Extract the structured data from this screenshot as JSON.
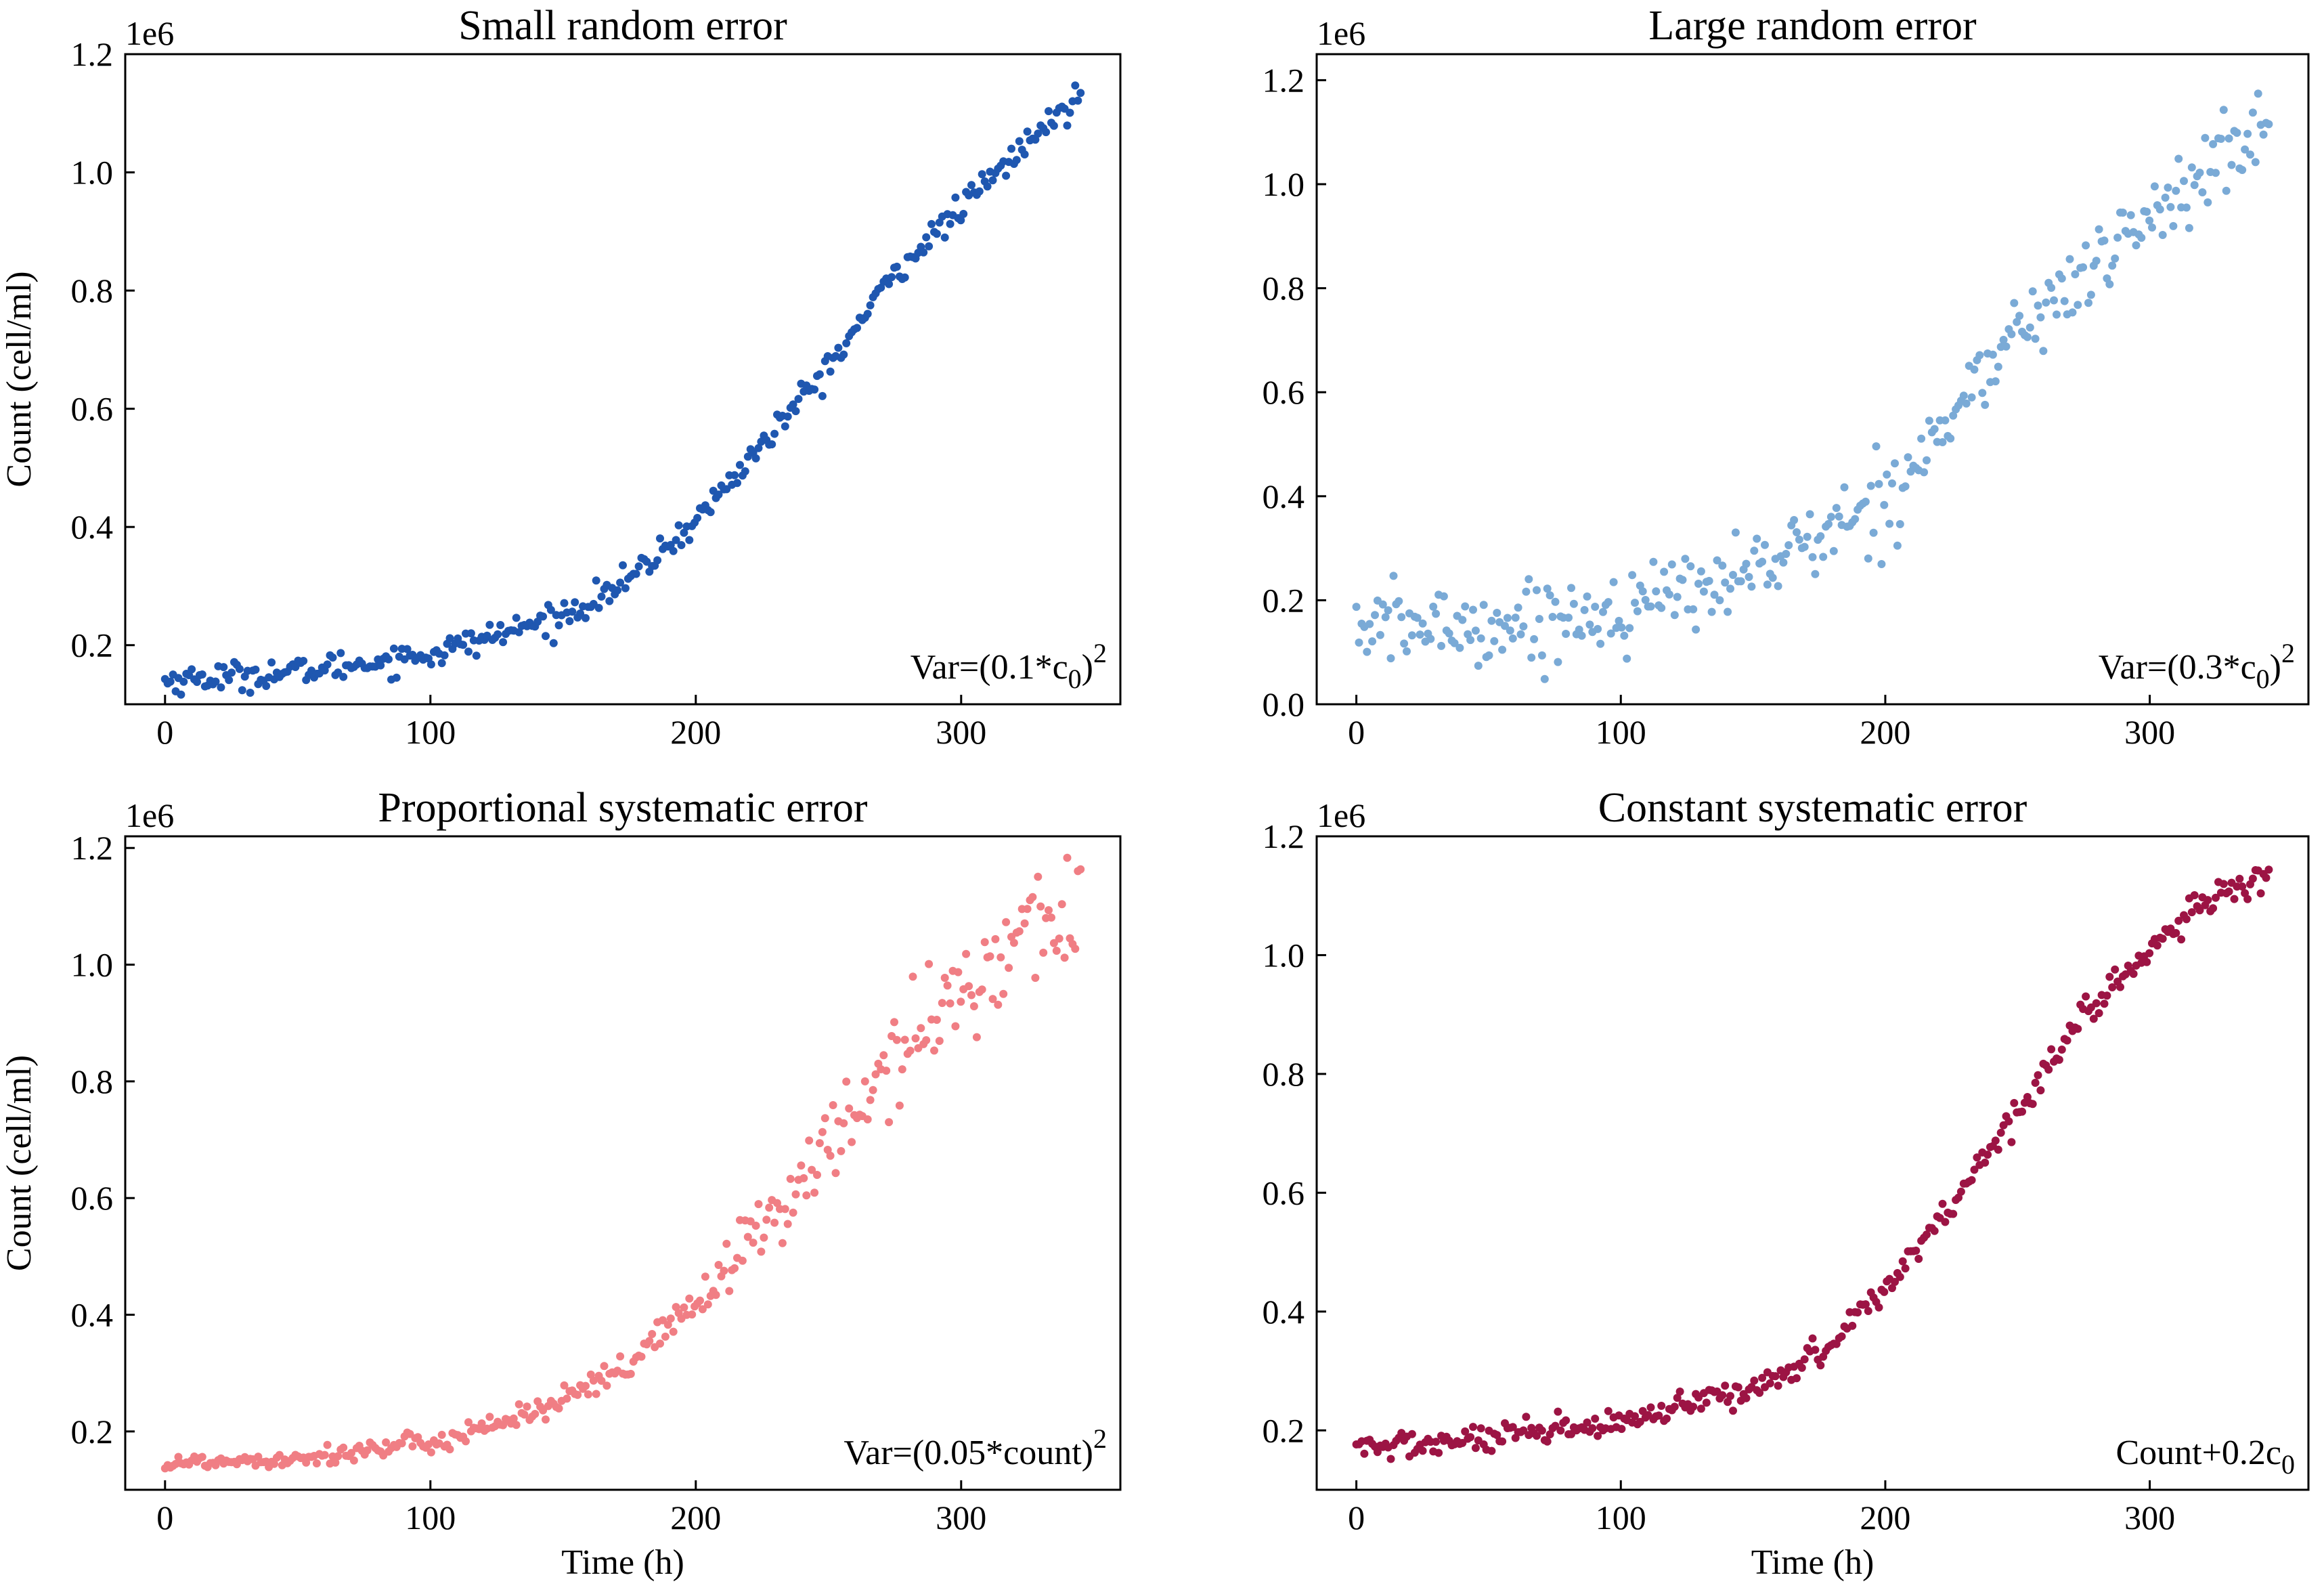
{
  "figure": {
    "y_label": "Count (cell/ml)",
    "x_label": "Time (h)"
  },
  "chart_data": [
    {
      "type": "scatter",
      "title": "Small random error",
      "xlabel": "",
      "ylabel": "Count (cell/ml)",
      "offset_label": "1e6",
      "annotation": {
        "text": "Var=(0.1*c",
        "subscript": "0",
        "tail": ")",
        "superscript": "2"
      },
      "color": "#1f57b0",
      "noise_sd": 0.012,
      "xlim": [
        -15,
        360
      ],
      "ylim": [
        0.1,
        1.2
      ],
      "xticks": [
        0,
        100,
        200,
        300
      ],
      "yticks": [
        0.2,
        0.4,
        0.6,
        0.8,
        1.0,
        1.2
      ],
      "x_range": [
        0,
        345
      ],
      "n_points": 345,
      "curve": {
        "x": [
          0,
          50,
          100,
          150,
          175,
          200,
          225,
          250,
          275,
          300,
          325,
          345
        ],
        "y": [
          0.14,
          0.155,
          0.185,
          0.25,
          0.31,
          0.41,
          0.54,
          0.67,
          0.83,
          0.94,
          1.05,
          1.13
        ]
      }
    },
    {
      "type": "scatter",
      "title": "Large random error",
      "xlabel": "",
      "ylabel": "",
      "offset_label": "1e6",
      "annotation": {
        "text": "Var=(0.3*c",
        "subscript": "0",
        "tail": ")",
        "superscript": "2"
      },
      "color": "#7aaad6",
      "noise_sd": 0.038,
      "xlim": [
        -15,
        360
      ],
      "ylim": [
        0.0,
        1.25
      ],
      "xticks": [
        0,
        100,
        200,
        300
      ],
      "yticks": [
        0.0,
        0.2,
        0.4,
        0.6,
        0.8,
        1.0,
        1.2
      ],
      "x_range": [
        0,
        345
      ],
      "n_points": 345,
      "curve": {
        "x": [
          0,
          50,
          100,
          150,
          175,
          200,
          225,
          250,
          275,
          300,
          325,
          345
        ],
        "y": [
          0.15,
          0.15,
          0.18,
          0.26,
          0.32,
          0.4,
          0.55,
          0.72,
          0.82,
          0.94,
          1.04,
          1.1
        ]
      }
    },
    {
      "type": "scatter",
      "title": "Proportional systematic error",
      "xlabel": "Time (h)",
      "ylabel": "Count (cell/ml)",
      "offset_label": "1e6",
      "annotation": {
        "text": "Var=(0.05*count)",
        "subscript": "",
        "tail": "",
        "superscript": "2"
      },
      "color": "#f07e84",
      "noise_sd": 0.0,
      "proportional_sd": 0.05,
      "xlim": [
        -15,
        360
      ],
      "ylim": [
        0.1,
        1.22
      ],
      "xticks": [
        0,
        100,
        200,
        300
      ],
      "yticks": [
        0.2,
        0.4,
        0.6,
        0.8,
        1.0,
        1.2
      ],
      "x_range": [
        0,
        345
      ],
      "n_points": 345,
      "curve": {
        "x": [
          0,
          50,
          100,
          150,
          175,
          200,
          225,
          250,
          275,
          300,
          325,
          345
        ],
        "y": [
          0.145,
          0.155,
          0.18,
          0.25,
          0.31,
          0.42,
          0.55,
          0.69,
          0.83,
          0.96,
          1.06,
          1.1
        ]
      }
    },
    {
      "type": "scatter",
      "title": "Constant systematic error",
      "xlabel": "Time (h)",
      "ylabel": "",
      "offset_label": "1e6",
      "annotation": {
        "text": "Count+0.2c",
        "subscript": "0",
        "tail": "",
        "superscript": ""
      },
      "color": "#9c1444",
      "noise_sd": 0.012,
      "xlim": [
        -15,
        360
      ],
      "ylim": [
        0.1,
        1.2
      ],
      "xticks": [
        0,
        100,
        200,
        300
      ],
      "yticks": [
        0.2,
        0.4,
        0.6,
        0.8,
        1.0,
        1.2
      ],
      "x_range": [
        0,
        345
      ],
      "n_points": 345,
      "curve": {
        "x": [
          0,
          50,
          100,
          150,
          175,
          200,
          225,
          250,
          275,
          300,
          325,
          345
        ],
        "y": [
          0.17,
          0.185,
          0.21,
          0.27,
          0.33,
          0.44,
          0.58,
          0.74,
          0.9,
          1.01,
          1.1,
          1.13
        ]
      }
    }
  ]
}
